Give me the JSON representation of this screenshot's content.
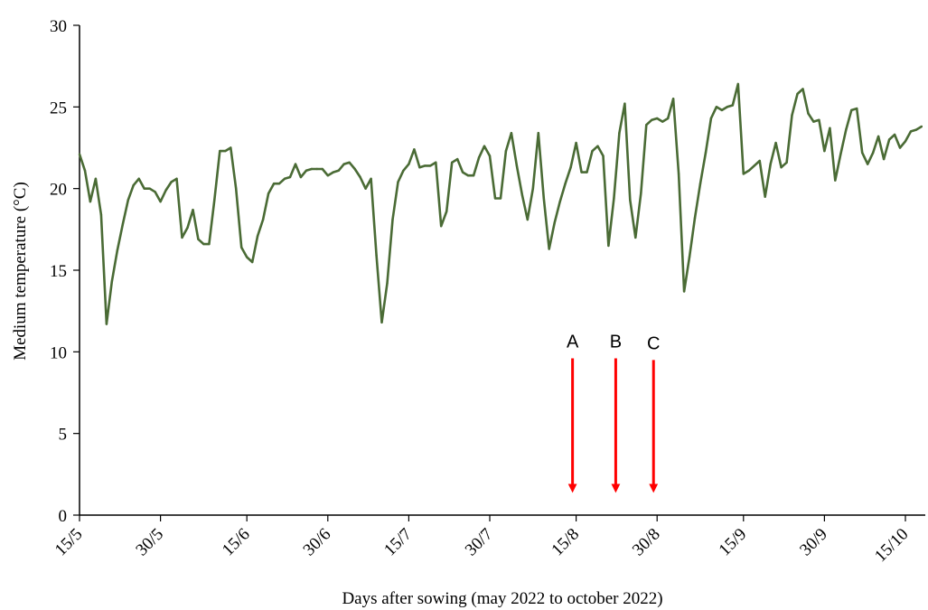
{
  "chart_data": {
    "type": "line",
    "xlabel": "Days after sowing (may  2022  to october 2022)",
    "ylabel": "Medium  temperature (°C)",
    "ylim": [
      0,
      30
    ],
    "y_ticks": [
      "0",
      "5",
      "10",
      "15",
      "20",
      "25",
      "30"
    ],
    "x_ticks": [
      {
        "date": "2022-05-15",
        "label": "15/5"
      },
      {
        "date": "2022-05-30",
        "label": "30/5"
      },
      {
        "date": "2022-06-15",
        "label": "15/6"
      },
      {
        "date": "2022-06-30",
        "label": "30/6"
      },
      {
        "date": "2022-07-15",
        "label": "15/7"
      },
      {
        "date": "2022-07-30",
        "label": "30/7"
      },
      {
        "date": "2022-08-15",
        "label": "15/8"
      },
      {
        "date": "2022-08-30",
        "label": "30/8"
      },
      {
        "date": "2022-09-15",
        "label": "15/9"
      },
      {
        "date": "2022-09-30",
        "label": "30/9"
      },
      {
        "date": "2022-10-15",
        "label": "15/10"
      }
    ],
    "grid": false,
    "legend": "none",
    "line_color": "#4a6b35",
    "series": [
      {
        "x": [
          "2022-05-15",
          "2022-05-16",
          "2022-05-17",
          "2022-05-18",
          "2022-05-19",
          "2022-05-20",
          "2022-05-21",
          "2022-05-22",
          "2022-05-23",
          "2022-05-24",
          "2022-05-25",
          "2022-05-26",
          "2022-05-27",
          "2022-05-28",
          "2022-05-29",
          "2022-05-30",
          "2022-05-31",
          "2022-06-01",
          "2022-06-02",
          "2022-06-03",
          "2022-06-04",
          "2022-06-05",
          "2022-06-06",
          "2022-06-07",
          "2022-06-08",
          "2022-06-09",
          "2022-06-10",
          "2022-06-11",
          "2022-06-12",
          "2022-06-13",
          "2022-06-14",
          "2022-06-15",
          "2022-06-16",
          "2022-06-17",
          "2022-06-18",
          "2022-06-19",
          "2022-06-20",
          "2022-06-21",
          "2022-06-22",
          "2022-06-23",
          "2022-06-24",
          "2022-06-25",
          "2022-06-26",
          "2022-06-27",
          "2022-06-28",
          "2022-06-29",
          "2022-06-30",
          "2022-07-01",
          "2022-07-02",
          "2022-07-03",
          "2022-07-04",
          "2022-07-05",
          "2022-07-06",
          "2022-07-07",
          "2022-07-08",
          "2022-07-09",
          "2022-07-10",
          "2022-07-11",
          "2022-07-12",
          "2022-07-13",
          "2022-07-14",
          "2022-07-15",
          "2022-07-16",
          "2022-07-17",
          "2022-07-18",
          "2022-07-19",
          "2022-07-20",
          "2022-07-21",
          "2022-07-22",
          "2022-07-23",
          "2022-07-24",
          "2022-07-25",
          "2022-07-26",
          "2022-07-27",
          "2022-07-28",
          "2022-07-29",
          "2022-07-30",
          "2022-07-31",
          "2022-08-01",
          "2022-08-02",
          "2022-08-03",
          "2022-08-04",
          "2022-08-05",
          "2022-08-06",
          "2022-08-07",
          "2022-08-08",
          "2022-08-09",
          "2022-08-10",
          "2022-08-11",
          "2022-08-12",
          "2022-08-13",
          "2022-08-14",
          "2022-08-15",
          "2022-08-16",
          "2022-08-17",
          "2022-08-18",
          "2022-08-19",
          "2022-08-20",
          "2022-08-21",
          "2022-08-22",
          "2022-08-23",
          "2022-08-24",
          "2022-08-25",
          "2022-08-26",
          "2022-08-27",
          "2022-08-28",
          "2022-08-29",
          "2022-08-30",
          "2022-08-31",
          "2022-09-01",
          "2022-09-02",
          "2022-09-03",
          "2022-09-04",
          "2022-09-05",
          "2022-09-06",
          "2022-09-07",
          "2022-09-08",
          "2022-09-09",
          "2022-09-10",
          "2022-09-11",
          "2022-09-12",
          "2022-09-13",
          "2022-09-14",
          "2022-09-15",
          "2022-09-16",
          "2022-09-17",
          "2022-09-18",
          "2022-09-19",
          "2022-09-20",
          "2022-09-21",
          "2022-09-22",
          "2022-09-23",
          "2022-09-24",
          "2022-09-25",
          "2022-09-26",
          "2022-09-27",
          "2022-09-28",
          "2022-09-29",
          "2022-09-30",
          "2022-10-01",
          "2022-10-02",
          "2022-10-03",
          "2022-10-04",
          "2022-10-05",
          "2022-10-06",
          "2022-10-07",
          "2022-10-08",
          "2022-10-09",
          "2022-10-10",
          "2022-10-11",
          "2022-10-12",
          "2022-10-13",
          "2022-10-14",
          "2022-10-15",
          "2022-10-16",
          "2022-10-17",
          "2022-10-18"
        ],
        "values": [
          22.1,
          21.1,
          19.2,
          20.6,
          18.4,
          11.7,
          14.3,
          16.2,
          17.8,
          19.3,
          20.2,
          20.6,
          20.0,
          20.0,
          19.8,
          19.2,
          19.9,
          20.4,
          20.6,
          17.0,
          17.6,
          18.7,
          16.9,
          16.6,
          16.6,
          19.3,
          22.3,
          22.3,
          22.5,
          20.0,
          16.4,
          15.8,
          15.5,
          17.1,
          18.1,
          19.7,
          20.3,
          20.3,
          20.6,
          20.7,
          21.5,
          20.7,
          21.1,
          21.2,
          21.2,
          21.2,
          20.8,
          21.0,
          21.1,
          21.5,
          21.6,
          21.2,
          20.7,
          20.0,
          20.6,
          15.9,
          11.8,
          14.2,
          18.1,
          20.4,
          21.1,
          21.5,
          22.4,
          21.3,
          21.4,
          21.4,
          21.6,
          17.7,
          18.6,
          21.6,
          21.8,
          21.0,
          20.8,
          20.8,
          21.9,
          22.6,
          22.0,
          19.4,
          19.4,
          22.3,
          23.4,
          21.4,
          19.6,
          18.1,
          20.0,
          23.4,
          19.4,
          16.3,
          17.9,
          19.2,
          20.3,
          21.3,
          22.8,
          21.0,
          21.0,
          22.3,
          22.6,
          22.0,
          16.5,
          19.4,
          23.4,
          25.2,
          19.3,
          17.0,
          19.7,
          23.9,
          24.2,
          24.3,
          24.1,
          24.3,
          25.5,
          20.9,
          13.7,
          15.8,
          18.2,
          20.3,
          22.2,
          24.3,
          25.0,
          24.8,
          25.0,
          25.1,
          26.4,
          20.9,
          21.1,
          21.4,
          21.7,
          19.5,
          21.5,
          22.8,
          21.3,
          21.6,
          24.5,
          25.8,
          26.1,
          24.6,
          24.1,
          24.2,
          22.3,
          23.7,
          20.5,
          22.1,
          23.6,
          24.8,
          24.9,
          22.2,
          21.5,
          22.2,
          23.2,
          21.8,
          23.0,
          23.3,
          22.5,
          22.9,
          23.5,
          23.6,
          23.8
        ]
      }
    ],
    "annotations": [
      {
        "label": "A",
        "date": "2022-08-14",
        "arrow_from": 9.6,
        "arrow_to": 1.2,
        "color": "#ff0000"
      },
      {
        "label": "B",
        "date": "2022-08-22",
        "arrow_from": 9.6,
        "arrow_to": 1.2,
        "color": "#ff0000"
      },
      {
        "label": "C",
        "date": "2022-08-29",
        "arrow_from": 9.5,
        "arrow_to": 1.2,
        "color": "#ff0000"
      }
    ]
  }
}
